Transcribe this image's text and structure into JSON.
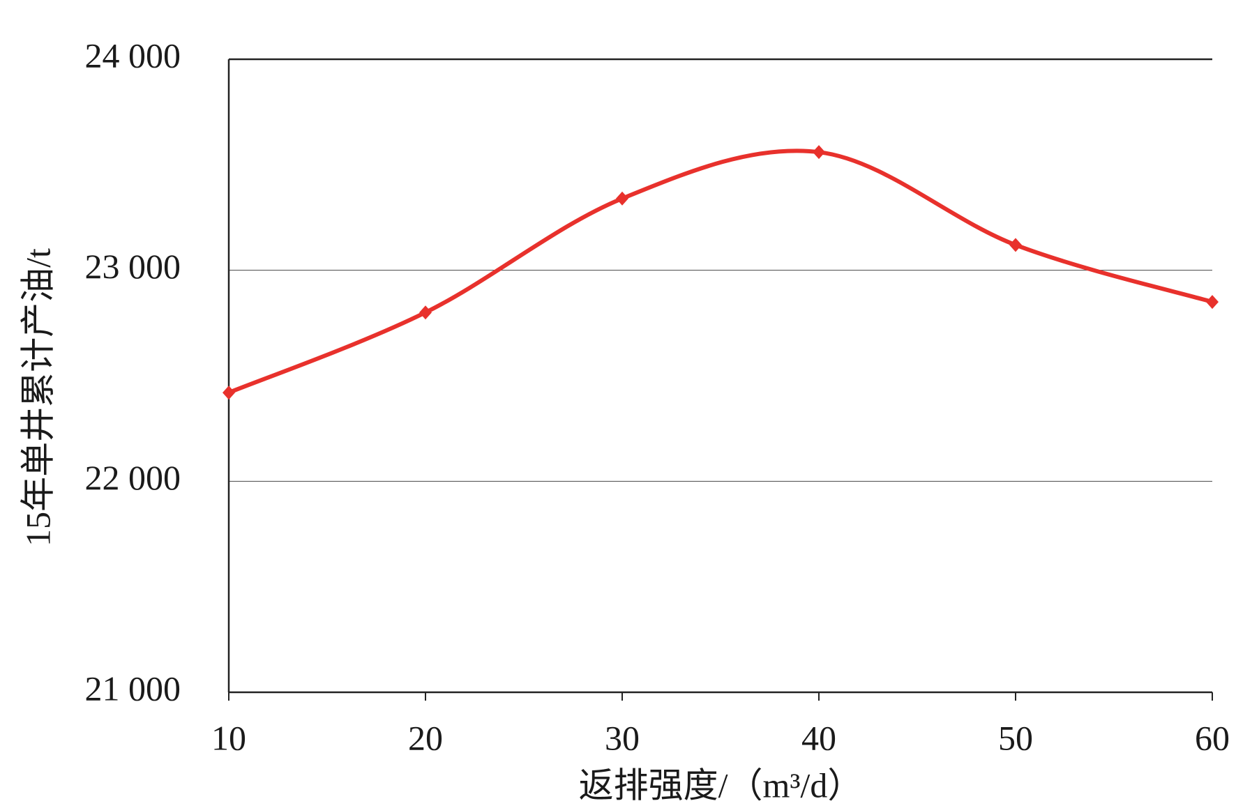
{
  "chart_data": {
    "type": "line",
    "y_label": "15年单井累计产油/t",
    "x_label": "返排强度/（m³/d）",
    "x": [
      10,
      20,
      30,
      40,
      50,
      60
    ],
    "series": [
      {
        "name": "15年单井累计产油",
        "color": "#e8312c",
        "values": [
          22420,
          22800,
          23340,
          23560,
          23120,
          22850
        ]
      }
    ],
    "xlim": [
      10,
      60
    ],
    "xticks": [
      10,
      20,
      30,
      40,
      50,
      60
    ],
    "ylim": [
      21000,
      24000
    ],
    "yticks": [
      {
        "value": 21000,
        "label": "21 000"
      },
      {
        "value": 22000,
        "label": "22 000"
      },
      {
        "value": 23000,
        "label": "23 000"
      },
      {
        "value": 24000,
        "label": "24 000"
      }
    ],
    "grid": true,
    "smooth": true
  }
}
